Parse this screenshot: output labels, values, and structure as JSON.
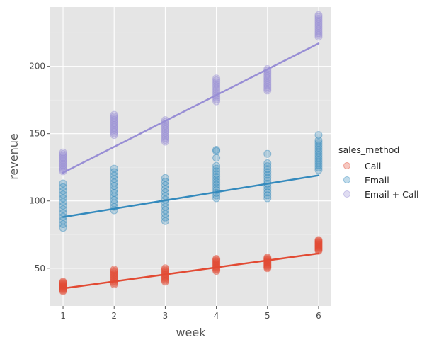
{
  "chart_data": {
    "type": "scatter",
    "title": "",
    "xlabel": "week",
    "ylabel": "revenue",
    "xlim": [
      0.75,
      6.25
    ],
    "ylim": [
      22,
      244
    ],
    "xticks": [
      1,
      2,
      3,
      4,
      5,
      6
    ],
    "yticks": [
      50,
      100,
      150,
      200
    ],
    "grid": true,
    "legend": {
      "title": "sales_method",
      "placement": "right"
    },
    "series": [
      {
        "name": "Call",
        "color": "#E24A33",
        "points": [
          {
            "x": 1,
            "min": 33,
            "max": 40
          },
          {
            "x": 2,
            "min": 38,
            "max": 49
          },
          {
            "x": 3,
            "min": 40,
            "max": 50
          },
          {
            "x": 4,
            "min": 48,
            "max": 57
          },
          {
            "x": 5,
            "min": 50,
            "max": 58
          },
          {
            "x": 6,
            "min": 63,
            "max": 71
          }
        ],
        "outliers": [],
        "trend": {
          "x": [
            1,
            6
          ],
          "y": [
            35,
            61
          ]
        }
      },
      {
        "name": "Email",
        "color": "#348ABD",
        "points": [
          {
            "x": 1,
            "min": 80,
            "max": 113
          },
          {
            "x": 2,
            "min": 93,
            "max": 124
          },
          {
            "x": 3,
            "min": 85,
            "max": 117
          },
          {
            "x": 4,
            "min": 102,
            "max": 126
          },
          {
            "x": 5,
            "min": 102,
            "max": 128
          },
          {
            "x": 6,
            "min": 123,
            "max": 145
          }
        ],
        "outliers": [
          {
            "x": 4,
            "y": 132
          },
          {
            "x": 4,
            "y": 137
          },
          {
            "x": 4,
            "y": 138
          },
          {
            "x": 5,
            "y": 135
          },
          {
            "x": 6,
            "y": 149
          }
        ],
        "trend": {
          "x": [
            1,
            6
          ],
          "y": [
            88,
            119
          ]
        }
      },
      {
        "name": "Email + Call",
        "color": "#988ED5",
        "points": [
          {
            "x": 1,
            "min": 122,
            "max": 136
          },
          {
            "x": 2,
            "min": 149,
            "max": 164
          },
          {
            "x": 3,
            "min": 144,
            "max": 160
          },
          {
            "x": 4,
            "min": 174,
            "max": 191
          },
          {
            "x": 5,
            "min": 182,
            "max": 198
          },
          {
            "x": 6,
            "min": 222,
            "max": 238
          }
        ],
        "outliers": [],
        "trend": {
          "x": [
            1,
            6
          ],
          "y": [
            121,
            217
          ]
        }
      }
    ]
  }
}
